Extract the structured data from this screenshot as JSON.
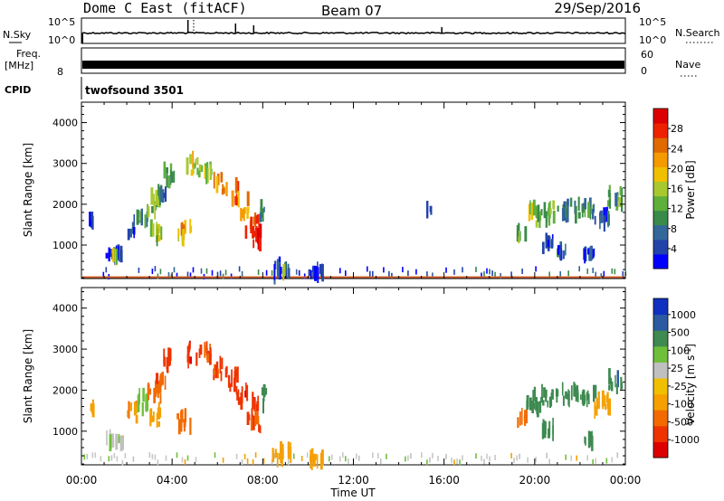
{
  "header": {
    "station": "Dome C East (fitACF)",
    "beam": "Beam 07",
    "date": "29/Sep/2016"
  },
  "strips": {
    "nsky_label": "N.Sky",
    "nsky_ticks": [
      "10^5",
      "10^0"
    ],
    "nsearch_label": "N.Search",
    "nsearch_ticks": [
      "10^5",
      "10^0"
    ],
    "freq_label": "Freq.",
    "freq_unit": "[MHz]",
    "freq_tick": "8",
    "nave_label": "Nave",
    "nave_ticks": [
      "60",
      "0"
    ],
    "cpid_label": "CPID",
    "cpid_value": "twofsound 3501",
    "colors": {
      "line": "#000000",
      "dotted": "#000000"
    }
  },
  "xaxis": {
    "label": "Time UT",
    "ticks": [
      "00:00",
      "04:00",
      "08:00",
      "12:00",
      "16:00",
      "20:00",
      "00:00"
    ],
    "range_hours": [
      0,
      24
    ]
  },
  "chart_data": [
    {
      "type": "heatmap",
      "parameter": "Power",
      "ylabel": "Slant Range [km]",
      "yticks": [
        1000,
        2000,
        3000,
        4000
      ],
      "ylim": [
        180,
        4500
      ],
      "xlim_hours": [
        0,
        24
      ],
      "colorbar": {
        "label": "Power [dB]",
        "ticks": [
          "28",
          "24",
          "20",
          "16",
          "12",
          "8",
          "4"
        ],
        "colors": [
          "#0000ff",
          "#2244aa",
          "#336699",
          "#3a8a4a",
          "#5fb03a",
          "#a8c830",
          "#f0c000",
          "#f59a00",
          "#e06a00",
          "#ee2200",
          "#dd0000"
        ]
      },
      "ground_scatter_color": "#d06030",
      "patches": [
        {
          "t0": 0.3,
          "t1": 0.5,
          "r0": 1500,
          "r1": 1650,
          "v": 5
        },
        {
          "t0": 1.0,
          "t1": 1.8,
          "r0": 700,
          "r1": 850,
          "v": 6
        },
        {
          "t0": 1.3,
          "t1": 1.6,
          "r0": 700,
          "r1": 800,
          "v": 18
        },
        {
          "t0": 2.0,
          "t1": 2.4,
          "r0": 1250,
          "r1": 1650,
          "v": 7
        },
        {
          "t0": 2.4,
          "t1": 2.9,
          "r0": 1500,
          "r1": 1900,
          "v": 12
        },
        {
          "t0": 2.9,
          "t1": 3.5,
          "r0": 1800,
          "r1": 2200,
          "v": 14
        },
        {
          "t0": 3.0,
          "t1": 3.6,
          "r0": 1150,
          "r1": 1500,
          "v": 16
        },
        {
          "t0": 3.2,
          "t1": 3.7,
          "r0": 2050,
          "r1": 2400,
          "v": 9
        },
        {
          "t0": 3.6,
          "t1": 4.1,
          "r0": 2500,
          "r1": 2900,
          "v": 13
        },
        {
          "t0": 4.2,
          "t1": 4.8,
          "r0": 1100,
          "r1": 1500,
          "v": 20
        },
        {
          "t0": 4.6,
          "t1": 5.1,
          "r0": 2700,
          "r1": 3150,
          "v": 17
        },
        {
          "t0": 5.1,
          "t1": 5.7,
          "r0": 2700,
          "r1": 3050,
          "v": 15
        },
        {
          "t0": 5.8,
          "t1": 6.4,
          "r0": 2300,
          "r1": 2700,
          "v": 22
        },
        {
          "t0": 6.4,
          "t1": 6.9,
          "r0": 2050,
          "r1": 2500,
          "v": 24
        },
        {
          "t0": 6.8,
          "t1": 7.3,
          "r0": 1700,
          "r1": 2150,
          "v": 21
        },
        {
          "t0": 7.2,
          "t1": 7.8,
          "r0": 1250,
          "r1": 1750,
          "v": 25
        },
        {
          "t0": 7.4,
          "t1": 7.9,
          "r0": 1000,
          "r1": 1350,
          "v": 28
        },
        {
          "t0": 7.8,
          "t1": 8.1,
          "r0": 1550,
          "r1": 2000,
          "v": 11
        },
        {
          "t0": 8.4,
          "t1": 9.2,
          "r0": 250,
          "r1": 600,
          "v": 6
        },
        {
          "t0": 8.8,
          "t1": 9.0,
          "r0": 300,
          "r1": 500,
          "v": 14
        },
        {
          "t0": 10.0,
          "t1": 10.6,
          "r0": 250,
          "r1": 420,
          "v": 4
        },
        {
          "t0": 15.2,
          "t1": 15.4,
          "r0": 1800,
          "r1": 1900,
          "v": 8
        },
        {
          "t0": 19.2,
          "t1": 19.6,
          "r0": 1200,
          "r1": 1400,
          "v": 12
        },
        {
          "t0": 19.6,
          "t1": 20.2,
          "r0": 1500,
          "r1": 1950,
          "v": 16
        },
        {
          "t0": 20.2,
          "t1": 21.0,
          "r0": 1600,
          "r1": 2000,
          "v": 14
        },
        {
          "t0": 20.3,
          "t1": 20.8,
          "r0": 900,
          "r1": 1150,
          "v": 5
        },
        {
          "t0": 20.8,
          "t1": 21.4,
          "r0": 750,
          "r1": 900,
          "v": 7
        },
        {
          "t0": 21.2,
          "t1": 22.0,
          "r0": 1700,
          "r1": 2050,
          "v": 9
        },
        {
          "t0": 22.0,
          "t1": 22.7,
          "r0": 1750,
          "r1": 2050,
          "v": 11
        },
        {
          "t0": 22.6,
          "t1": 23.3,
          "r0": 1500,
          "r1": 1800,
          "v": 6
        },
        {
          "t0": 22.1,
          "t1": 22.6,
          "r0": 700,
          "r1": 850,
          "v": 4
        },
        {
          "t0": 23.2,
          "t1": 23.8,
          "r0": 2000,
          "r1": 2350,
          "v": 13
        }
      ]
    },
    {
      "type": "heatmap",
      "parameter": "Velocity",
      "ylabel": "Slant Range [km]",
      "yticks": [
        1000,
        2000,
        3000,
        4000
      ],
      "ylim": [
        180,
        4500
      ],
      "xlim_hours": [
        0,
        24
      ],
      "colorbar": {
        "label": "Velocity [m s^-1]",
        "ticks": [
          "1000",
          "500",
          "100",
          "25",
          "-25",
          "-100",
          "-500",
          "-1000"
        ],
        "colors": [
          "#dd0000",
          "#ee3300",
          "#f26a00",
          "#f5a000",
          "#f0c000",
          "#c0c0c0",
          "#6fbf3a",
          "#3e8a50",
          "#2c5aa0",
          "#1030c0"
        ]
      },
      "ground_scatter_color": "#c8c8c8",
      "patches": [
        {
          "t0": 0.3,
          "t1": 0.5,
          "r0": 1500,
          "r1": 1650,
          "v": -60
        },
        {
          "t0": 1.0,
          "t1": 1.8,
          "r0": 700,
          "r1": 850,
          "v": 0
        },
        {
          "t0": 2.0,
          "t1": 2.4,
          "r0": 1250,
          "r1": 1650,
          "v": -80
        },
        {
          "t0": 2.4,
          "t1": 2.9,
          "r0": 1500,
          "r1": 1900,
          "v": 60
        },
        {
          "t0": 2.9,
          "t1": 3.5,
          "r0": 1800,
          "r1": 2200,
          "v": -200
        },
        {
          "t0": 3.0,
          "t1": 3.6,
          "r0": 1150,
          "r1": 1500,
          "v": -60
        },
        {
          "t0": 3.2,
          "t1": 3.7,
          "r0": 2050,
          "r1": 2400,
          "v": -400
        },
        {
          "t0": 3.6,
          "t1": 4.1,
          "r0": 2500,
          "r1": 2900,
          "v": -700
        },
        {
          "t0": 4.2,
          "t1": 4.8,
          "r0": 1100,
          "r1": 1500,
          "v": -300
        },
        {
          "t0": 4.6,
          "t1": 5.1,
          "r0": 2700,
          "r1": 3150,
          "v": -800
        },
        {
          "t0": 5.1,
          "t1": 5.7,
          "r0": 2700,
          "r1": 3050,
          "v": -600
        },
        {
          "t0": 5.8,
          "t1": 6.4,
          "r0": 2300,
          "r1": 2700,
          "v": -500
        },
        {
          "t0": 6.4,
          "t1": 6.9,
          "r0": 2050,
          "r1": 2500,
          "v": -700
        },
        {
          "t0": 6.8,
          "t1": 7.3,
          "r0": 1700,
          "r1": 2150,
          "v": -900
        },
        {
          "t0": 7.2,
          "t1": 7.8,
          "r0": 1250,
          "r1": 1750,
          "v": -800
        },
        {
          "t0": 7.4,
          "t1": 7.9,
          "r0": 1000,
          "r1": 1350,
          "v": -600
        },
        {
          "t0": 7.8,
          "t1": 8.1,
          "r0": 1550,
          "r1": 2000,
          "v": 200
        },
        {
          "t0": 8.4,
          "t1": 9.2,
          "r0": 250,
          "r1": 600,
          "v": -60
        },
        {
          "t0": 10.0,
          "t1": 10.6,
          "r0": 250,
          "r1": 420,
          "v": -60
        },
        {
          "t0": 19.2,
          "t1": 19.6,
          "r0": 1200,
          "r1": 1400,
          "v": -300
        },
        {
          "t0": 19.6,
          "t1": 20.2,
          "r0": 1500,
          "r1": 1950,
          "v": 200
        },
        {
          "t0": 20.2,
          "t1": 21.0,
          "r0": 1600,
          "r1": 2000,
          "v": 150
        },
        {
          "t0": 20.3,
          "t1": 20.8,
          "r0": 900,
          "r1": 1150,
          "v": 150
        },
        {
          "t0": 21.2,
          "t1": 22.0,
          "r0": 1700,
          "r1": 2050,
          "v": 300
        },
        {
          "t0": 22.0,
          "t1": 22.7,
          "r0": 1750,
          "r1": 2050,
          "v": 200
        },
        {
          "t0": 22.6,
          "t1": 23.3,
          "r0": 1500,
          "r1": 1800,
          "v": -60
        },
        {
          "t0": 22.1,
          "t1": 22.6,
          "r0": 700,
          "r1": 850,
          "v": 200
        },
        {
          "t0": 23.2,
          "t1": 23.8,
          "r0": 2000,
          "r1": 2350,
          "v": 400
        }
      ]
    }
  ]
}
